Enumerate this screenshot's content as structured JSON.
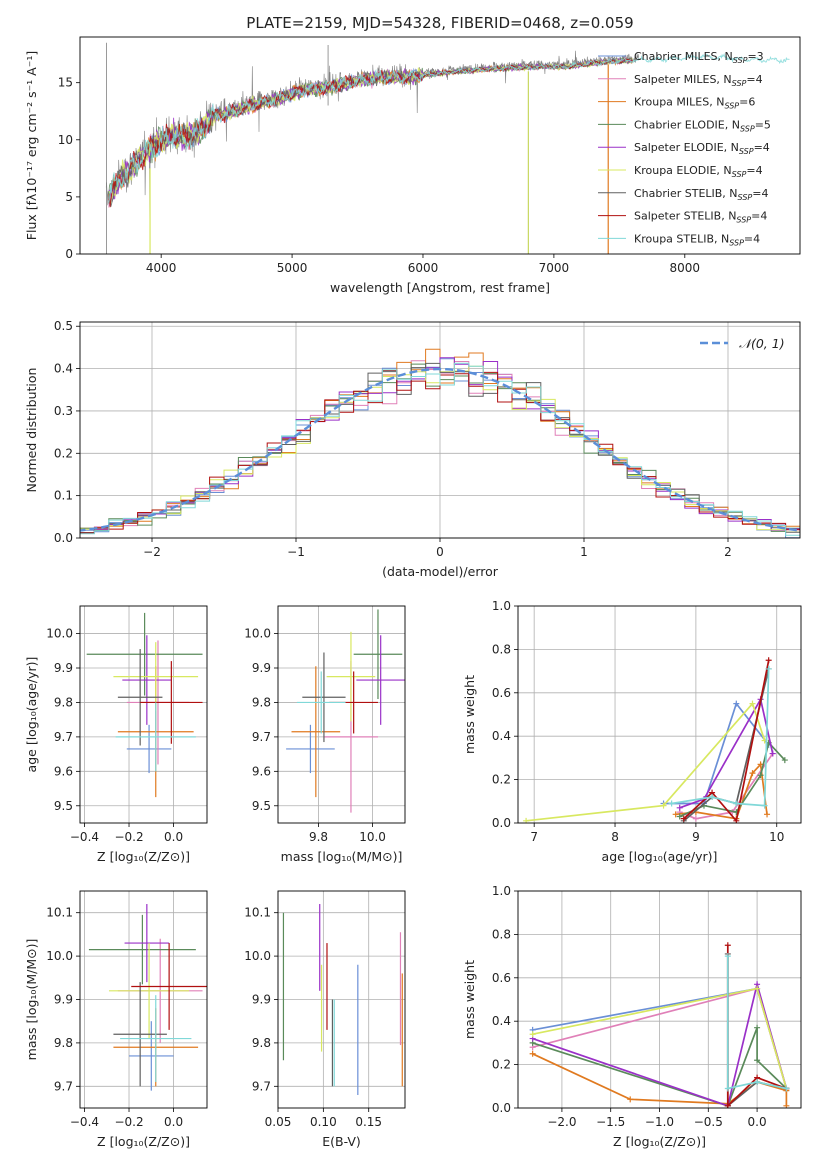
{
  "title": "PLATE=2159, MJD=54328, FIBERID=0468, z=0.059",
  "model_colors": [
    "#6a8fd6",
    "#e080b8",
    "#e07a20",
    "#5a8a5a",
    "#9a30c8",
    "#d8e860",
    "#606060",
    "#b01010",
    "#80d8d8"
  ],
  "chart_data": [
    {
      "id": "spectrum",
      "type": "line",
      "xlabel": "wavelength [Angstrom, rest frame]",
      "ylabel": "Flux [fλ10⁻¹⁷ erg cm⁻² s⁻¹ A⁻¹]",
      "xlim": [
        3380,
        8880
      ],
      "ylim": [
        0,
        19
      ],
      "xticks": [
        4000,
        5000,
        6000,
        7000,
        8000
      ],
      "yticks": [
        0,
        5,
        10,
        15
      ],
      "grid": false,
      "legend": "right",
      "legend_entries": [
        "Chabrier MILES, N_SSP=3",
        "Salpeter MILES, N_SSP=4",
        "Kroupa MILES, N_SSP=6",
        "Chabrier ELODIE, N_SSP=5",
        "Salpeter ELODIE, N_SSP=4",
        "Kroupa ELODIE, N_SSP=4",
        "Chabrier STELIB, N_SSP=4",
        "Salpeter STELIB, N_SSP=4",
        "Kroupa STELIB, N_SSP=4"
      ],
      "data_curve": {
        "x": [
          3580,
          3700,
          3800,
          3900,
          4000,
          4100,
          4200,
          4300,
          4400,
          4500,
          4700,
          4900,
          5100,
          5300,
          5500,
          5700,
          5900,
          6100,
          6300,
          6500,
          6700,
          6900,
          7100,
          7300,
          7500,
          7700,
          7900,
          8100,
          8300,
          8500,
          8700,
          8800
        ],
        "y": [
          4.8,
          7.0,
          8.0,
          9.3,
          10.1,
          10.6,
          10.4,
          11.0,
          12.3,
          12.5,
          13.2,
          13.8,
          14.6,
          14.8,
          15.4,
          15.7,
          15.7,
          16.0,
          16.2,
          16.4,
          16.5,
          16.6,
          16.6,
          16.9,
          17.1,
          17.2,
          17.3,
          17.5,
          17.4,
          17.2,
          17.2,
          17.1
        ]
      }
    },
    {
      "id": "residuals",
      "type": "histogram",
      "xlabel": "(data-model)/error",
      "ylabel": "Normed distribution",
      "xlim": [
        -2.5,
        2.5
      ],
      "ylim": [
        0,
        0.51
      ],
      "xticks": [
        -2,
        -1,
        0,
        1,
        2
      ],
      "yticks": [
        0.0,
        0.1,
        0.2,
        0.3,
        0.4,
        0.5
      ],
      "grid": true,
      "legend": "top-right",
      "legend_entries": [
        "𝒩(0, 1)"
      ],
      "reference": "normal distribution mean 0 sigma 1"
    },
    {
      "id": "age_vs_Z",
      "type": "errorbar",
      "xlabel": "Z [log₁₀(Z/Z⊙)]",
      "ylabel": "age  [log₁₀(age/yr)]",
      "xlim": [
        -0.42,
        0.15
      ],
      "ylim": [
        9.45,
        10.08
      ],
      "xticks": [
        -0.4,
        -0.2,
        0.0
      ],
      "yticks": [
        9.5,
        9.6,
        9.7,
        9.8,
        9.9,
        10.0
      ],
      "grid": true,
      "points": [
        {
          "x": -0.11,
          "xe": 0.1,
          "y": 9.665,
          "ye": 0.07
        },
        {
          "x": -0.07,
          "xe": 0.14,
          "y": 9.8,
          "ye": 0.18
        },
        {
          "x": -0.08,
          "xe": 0.17,
          "y": 9.715,
          "ye": 0.19
        },
        {
          "x": -0.13,
          "xe": 0.26,
          "y": 9.94,
          "ye": 0.12
        },
        {
          "x": -0.12,
          "xe": 0.11,
          "y": 9.865,
          "ye": 0.13
        },
        {
          "x": -0.08,
          "xe": 0.19,
          "y": 9.875,
          "ye": 0.1
        },
        {
          "x": -0.15,
          "xe": 0.1,
          "y": 9.815,
          "ye": 0.14
        },
        {
          "x": -0.01,
          "xe": 0.14,
          "y": 9.8,
          "ye": 0.12
        },
        {
          "x": -0.08,
          "xe": 0.18,
          "y": 9.7,
          "ye": 0.1
        }
      ]
    },
    {
      "id": "age_vs_mass",
      "type": "errorbar",
      "xlabel": "mass [log₁₀(M/M⊙)]",
      "ylabel": "",
      "xlim": [
        9.65,
        10.12
      ],
      "ylim": [
        9.45,
        10.08
      ],
      "xticks": [
        9.8,
        10.0
      ],
      "yticks": [
        9.5,
        9.6,
        9.7,
        9.8,
        9.9,
        10.0
      ],
      "grid": true,
      "points": [
        {
          "x": 9.77,
          "xe": 0.09,
          "y": 9.665,
          "ye": 0.07
        },
        {
          "x": 9.92,
          "xe": 0.1,
          "y": 9.7,
          "ye": 0.22
        },
        {
          "x": 9.79,
          "xe": 0.09,
          "y": 9.715,
          "ye": 0.19
        },
        {
          "x": 10.02,
          "xe": 0.09,
          "y": 9.94,
          "ye": 0.13
        },
        {
          "x": 10.03,
          "xe": 0.09,
          "y": 9.865,
          "ye": 0.13
        },
        {
          "x": 9.92,
          "xe": 0.09,
          "y": 9.875,
          "ye": 0.13
        },
        {
          "x": 9.82,
          "xe": 0.08,
          "y": 9.815,
          "ye": 0.13
        },
        {
          "x": 9.93,
          "xe": 0.09,
          "y": 9.8,
          "ye": 0.09
        },
        {
          "x": 9.81,
          "xe": 0.09,
          "y": 9.8,
          "ye": 0.09
        }
      ]
    },
    {
      "id": "weight_vs_age",
      "type": "line",
      "xlabel": "age  [log₁₀(age/yr)]",
      "ylabel": "mass weight",
      "xlim": [
        6.8,
        10.3
      ],
      "ylim": [
        0,
        1.0
      ],
      "xticks": [
        7,
        8,
        9,
        10
      ],
      "yticks": [
        0.0,
        0.2,
        0.4,
        0.6,
        0.8,
        1.0
      ],
      "grid": true,
      "series": [
        {
          "x": [
            8.6,
            9.1,
            9.5,
            9.9
          ],
          "y": [
            0.09,
            0.09,
            0.55,
            0.36
          ]
        },
        {
          "x": [
            8.8,
            9.0,
            9.45,
            9.95
          ],
          "y": [
            0.05,
            0.02,
            0.05,
            0.32
          ]
        },
        {
          "x": [
            8.75,
            9.0,
            9.5,
            9.7,
            9.8,
            9.88
          ],
          "y": [
            0.04,
            0.05,
            0.02,
            0.23,
            0.27,
            0.04
          ]
        },
        {
          "x": [
            8.8,
            9.1,
            9.5,
            9.8,
            9.9,
            10.1
          ],
          "y": [
            0.03,
            0.08,
            0.05,
            0.22,
            0.37,
            0.29
          ]
        },
        {
          "x": [
            8.8,
            9.1,
            9.8,
            9.95
          ],
          "y": [
            0.07,
            0.11,
            0.57,
            0.32
          ]
        },
        {
          "x": [
            6.9,
            8.6,
            9.7,
            9.85
          ],
          "y": [
            0.01,
            0.08,
            0.55,
            0.38
          ]
        },
        {
          "x": [
            8.85,
            9.2,
            9.5,
            9.9
          ],
          "y": [
            0.01,
            0.12,
            0.09,
            0.71
          ]
        },
        {
          "x": [
            8.85,
            9.2,
            9.5,
            9.9
          ],
          "y": [
            0.02,
            0.14,
            0.01,
            0.75
          ]
        },
        {
          "x": [
            8.7,
            9.2,
            9.5,
            9.85,
            9.9
          ],
          "y": [
            0.09,
            0.12,
            0.09,
            0.08,
            0.71
          ]
        }
      ]
    },
    {
      "id": "mass_vs_Z",
      "type": "errorbar",
      "xlabel": "Z [log₁₀(Z/Z⊙)]",
      "ylabel": "mass [log₁₀(M/M⊙)]",
      "xlim": [
        -0.42,
        0.15
      ],
      "ylim": [
        9.65,
        10.15
      ],
      "xticks": [
        -0.4,
        -0.2,
        0.0
      ],
      "yticks": [
        9.7,
        9.8,
        9.9,
        10.0,
        10.1
      ],
      "grid": true,
      "points": [
        {
          "x": -0.1,
          "xe": 0.1,
          "y": 9.77,
          "ye": 0.08
        },
        {
          "x": -0.06,
          "xe": 0.19,
          "y": 9.92,
          "ye": 0.12
        },
        {
          "x": -0.08,
          "xe": 0.19,
          "y": 9.79,
          "ye": 0.09
        },
        {
          "x": -0.14,
          "xe": 0.24,
          "y": 10.015,
          "ye": 0.08
        },
        {
          "x": -0.12,
          "xe": 0.1,
          "y": 10.03,
          "ye": 0.09
        },
        {
          "x": -0.11,
          "xe": 0.18,
          "y": 9.92,
          "ye": 0.11
        },
        {
          "x": -0.15,
          "xe": 0.12,
          "y": 9.82,
          "ye": 0.12
        },
        {
          "x": -0.02,
          "xe": 0.17,
          "y": 9.93,
          "ye": 0.1
        },
        {
          "x": -0.08,
          "xe": 0.16,
          "y": 9.81,
          "ye": 0.1
        }
      ]
    },
    {
      "id": "mass_vs_EBV",
      "type": "errorbar",
      "xlabel": "E(B-V)",
      "ylabel": "",
      "xlim": [
        0.05,
        0.19
      ],
      "ylim": [
        9.65,
        10.15
      ],
      "xticks": [
        0.05,
        0.1,
        0.15
      ],
      "yticks": [
        9.7,
        9.8,
        9.9,
        10.0,
        10.1
      ],
      "grid": true,
      "points": [
        {
          "x": 0.138,
          "y": 9.83,
          "ye": 0.15
        },
        {
          "x": 0.185,
          "y": 9.925,
          "ye": 0.13
        },
        {
          "x": 0.187,
          "y": 9.83,
          "ye": 0.13
        },
        {
          "x": 0.056,
          "y": 9.93,
          "ye": 0.17
        },
        {
          "x": 0.096,
          "y": 10.02,
          "ye": 0.1
        },
        {
          "x": 0.098,
          "y": 9.88,
          "ye": 0.1
        },
        {
          "x": 0.11,
          "y": 9.8,
          "ye": 0.1
        },
        {
          "x": 0.104,
          "y": 9.93,
          "ye": 0.1
        },
        {
          "x": 0.112,
          "y": 9.8,
          "ye": 0.1
        }
      ]
    },
    {
      "id": "weight_vs_Z",
      "type": "line",
      "xlabel": "Z [log₁₀(Z/Z⊙)]",
      "ylabel": "mass weight",
      "xlim": [
        -2.45,
        0.45
      ],
      "ylim": [
        0,
        1.0
      ],
      "xticks": [
        -2.0,
        -1.5,
        -1.0,
        -0.5,
        0.0
      ],
      "yticks": [
        0.0,
        0.2,
        0.4,
        0.6,
        0.8,
        1.0
      ],
      "grid": true,
      "series": [
        {
          "x": [
            -2.3,
            0.0,
            0.3
          ],
          "y": [
            0.36,
            0.55,
            0.09
          ]
        },
        {
          "x": [
            -2.3,
            0.0,
            0.3
          ],
          "y": [
            0.28,
            0.55,
            0.09
          ]
        },
        {
          "x": [
            -2.3,
            -1.3,
            -0.3,
            0.0,
            0.3,
            0.3
          ],
          "y": [
            0.25,
            0.04,
            0.02,
            0.12,
            0.08,
            0.01
          ]
        },
        {
          "x": [
            -2.3,
            -0.3,
            0.0,
            0.0,
            0.3
          ],
          "y": [
            0.3,
            0.01,
            0.37,
            0.22,
            0.09
          ]
        },
        {
          "x": [
            -2.3,
            -0.3,
            0.0,
            0.3
          ],
          "y": [
            0.32,
            0.01,
            0.57,
            0.09
          ]
        },
        {
          "x": [
            -2.3,
            0.0,
            0.3
          ],
          "y": [
            0.34,
            0.55,
            0.09
          ]
        },
        {
          "x": [
            -0.3,
            -0.3,
            0.0,
            0.3
          ],
          "y": [
            0.71,
            0.01,
            0.12,
            0.09
          ]
        },
        {
          "x": [
            -0.3,
            -0.3,
            0.0,
            0.3
          ],
          "y": [
            0.75,
            0.01,
            0.14,
            0.09
          ]
        },
        {
          "x": [
            -0.3,
            -0.3,
            0.0,
            0.3
          ],
          "y": [
            0.7,
            0.09,
            0.12,
            0.09
          ]
        }
      ]
    }
  ]
}
